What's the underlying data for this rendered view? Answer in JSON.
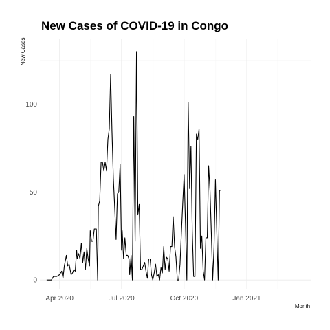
{
  "chart_data": {
    "type": "line",
    "title": "New Cases of COVID-19 in Congo",
    "xlabel": "Month",
    "ylabel": "New Cases",
    "x_ticks": [
      {
        "date": "2020-04-01",
        "label": "Apr 2020"
      },
      {
        "date": "2020-07-01",
        "label": "Jul 2020"
      },
      {
        "date": "2020-10-01",
        "label": "Oct 2020"
      },
      {
        "date": "2021-01-01",
        "label": "Jan 2021"
      }
    ],
    "y_ticks": [
      0,
      50,
      100
    ],
    "xlim": [
      "2020-03-03",
      "2021-04-05"
    ],
    "ylim": [
      -5,
      137
    ],
    "grid": true,
    "series": [
      {
        "values": [
          [
            "2020-03-13",
            0
          ],
          [
            "2020-03-20",
            0
          ],
          [
            "2020-03-23",
            2
          ],
          [
            "2020-03-28",
            2
          ],
          [
            "2020-04-01",
            3
          ],
          [
            "2020-04-04",
            5
          ],
          [
            "2020-04-06",
            1
          ],
          [
            "2020-04-08",
            8
          ],
          [
            "2020-04-10",
            12
          ],
          [
            "2020-04-11",
            14
          ],
          [
            "2020-04-13",
            8
          ],
          [
            "2020-04-15",
            9
          ],
          [
            "2020-04-17",
            5
          ],
          [
            "2020-04-18",
            3
          ],
          [
            "2020-04-20",
            4
          ],
          [
            "2020-04-22",
            6
          ],
          [
            "2020-04-24",
            5
          ],
          [
            "2020-04-26",
            17
          ],
          [
            "2020-04-27",
            12
          ],
          [
            "2020-04-29",
            15
          ],
          [
            "2020-05-01",
            12
          ],
          [
            "2020-05-03",
            21
          ],
          [
            "2020-05-05",
            10
          ],
          [
            "2020-05-07",
            16
          ],
          [
            "2020-05-09",
            6
          ],
          [
            "2020-05-11",
            18
          ],
          [
            "2020-05-13",
            12
          ],
          [
            "2020-05-15",
            8
          ],
          [
            "2020-05-16",
            28
          ],
          [
            "2020-05-18",
            22
          ],
          [
            "2020-05-20",
            22
          ],
          [
            "2020-05-22",
            29
          ],
          [
            "2020-05-25",
            29
          ],
          [
            "2020-05-27",
            0
          ],
          [
            "2020-05-28",
            42
          ],
          [
            "2020-05-30",
            45
          ],
          [
            "2020-06-01",
            67
          ],
          [
            "2020-06-03",
            67
          ],
          [
            "2020-06-05",
            62
          ],
          [
            "2020-06-07",
            67
          ],
          [
            "2020-06-09",
            62
          ],
          [
            "2020-06-11",
            80
          ],
          [
            "2020-06-13",
            86
          ],
          [
            "2020-06-15",
            117
          ],
          [
            "2020-06-17",
            85
          ],
          [
            "2020-06-19",
            58
          ],
          [
            "2020-06-21",
            41
          ],
          [
            "2020-06-23",
            23
          ],
          [
            "2020-06-25",
            49
          ],
          [
            "2020-06-27",
            50
          ],
          [
            "2020-06-29",
            66
          ],
          [
            "2020-07-01",
            17
          ],
          [
            "2020-07-02",
            28
          ],
          [
            "2020-07-04",
            12
          ],
          [
            "2020-07-06",
            24
          ],
          [
            "2020-07-08",
            14
          ],
          [
            "2020-07-10",
            14
          ],
          [
            "2020-07-12",
            12
          ],
          [
            "2020-07-13",
            3
          ],
          [
            "2020-07-15",
            14
          ],
          [
            "2020-07-17",
            0
          ],
          [
            "2020-07-19",
            93
          ],
          [
            "2020-07-21",
            22
          ],
          [
            "2020-07-23",
            130
          ],
          [
            "2020-07-25",
            37
          ],
          [
            "2020-07-27",
            43
          ],
          [
            "2020-07-29",
            6
          ],
          [
            "2020-07-31",
            6
          ],
          [
            "2020-08-02",
            8
          ],
          [
            "2020-08-04",
            10
          ],
          [
            "2020-08-06",
            5
          ],
          [
            "2020-08-08",
            1
          ],
          [
            "2020-08-10",
            12
          ],
          [
            "2020-08-12",
            12
          ],
          [
            "2020-08-14",
            3
          ],
          [
            "2020-08-16",
            0
          ],
          [
            "2020-08-18",
            4
          ],
          [
            "2020-08-20",
            9
          ],
          [
            "2020-08-22",
            2
          ],
          [
            "2020-08-24",
            3
          ],
          [
            "2020-08-26",
            0
          ],
          [
            "2020-08-28",
            7
          ],
          [
            "2020-08-30",
            4
          ],
          [
            "2020-09-01",
            19
          ],
          [
            "2020-09-03",
            6
          ],
          [
            "2020-09-05",
            13
          ],
          [
            "2020-09-07",
            12
          ],
          [
            "2020-09-09",
            5
          ],
          [
            "2020-09-11",
            19
          ],
          [
            "2020-09-13",
            19
          ],
          [
            "2020-09-15",
            36
          ],
          [
            "2020-09-17",
            19
          ],
          [
            "2020-09-19",
            13
          ],
          [
            "2020-09-21",
            0
          ],
          [
            "2020-09-23",
            0
          ],
          [
            "2020-09-25",
            9
          ],
          [
            "2020-09-27",
            27
          ],
          [
            "2020-09-29",
            44
          ],
          [
            "2020-10-01",
            60
          ],
          [
            "2020-10-03",
            32
          ],
          [
            "2020-10-05",
            0
          ],
          [
            "2020-10-07",
            101
          ],
          [
            "2020-10-09",
            52
          ],
          [
            "2020-10-11",
            76
          ],
          [
            "2020-10-13",
            28
          ],
          [
            "2020-10-15",
            2
          ],
          [
            "2020-10-17",
            2
          ],
          [
            "2020-10-19",
            83
          ],
          [
            "2020-10-21",
            80
          ],
          [
            "2020-10-23",
            86
          ],
          [
            "2020-10-25",
            18
          ],
          [
            "2020-10-27",
            25
          ],
          [
            "2020-10-29",
            5
          ],
          [
            "2020-10-31",
            0
          ],
          [
            "2020-11-02",
            24
          ],
          [
            "2020-11-04",
            24
          ],
          [
            "2020-11-06",
            65
          ],
          [
            "2020-11-08",
            51
          ],
          [
            "2020-11-10",
            26
          ],
          [
            "2020-11-12",
            0
          ],
          [
            "2020-11-14",
            19
          ],
          [
            "2020-11-16",
            57
          ],
          [
            "2020-11-18",
            27
          ],
          [
            "2020-11-20",
            0
          ],
          [
            "2020-11-22",
            51
          ],
          [
            "2020-11-24",
            51
          ]
        ]
      }
    ]
  }
}
